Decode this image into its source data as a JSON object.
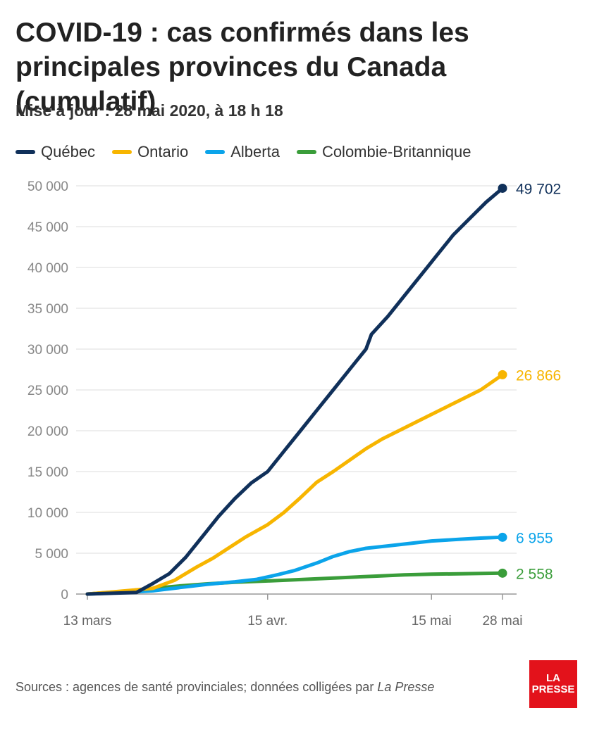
{
  "title": "COVID-19 : cas confirmés dans les principales provinces du Canada (cumulatif)",
  "subtitle": "Mise à jour : 28 mai 2020, à 18 h 18",
  "source": {
    "prefix": "Sources : agences de santé provinciales; données colligées par ",
    "publication": "La Presse"
  },
  "logo": {
    "line1": "LA",
    "line2": "PRESSE"
  },
  "colors": {
    "quebec": "#10305a",
    "ontario": "#f7b500",
    "alberta": "#0ba4ea",
    "bc": "#3a9d3a",
    "grid": "#dddddd",
    "axis": "#999999",
    "tick": "#888888"
  },
  "chart_data": {
    "type": "line",
    "title": "COVID-19 : cas confirmés dans les principales provinces du Canada (cumulatif)",
    "subtitle": "Mise à jour : 28 mai 2020, à 18 h 18",
    "xlabel": "",
    "ylabel": "",
    "x_ticks": [
      {
        "label": "13 mars",
        "date": "2020-03-13"
      },
      {
        "label": "15 avr.",
        "date": "2020-04-15"
      },
      {
        "label": "15 mai",
        "date": "2020-05-15"
      },
      {
        "label": "28 mai",
        "date": "2020-05-28"
      }
    ],
    "xlim": [
      "2020-03-13",
      "2020-05-28"
    ],
    "ylim": [
      0,
      50000
    ],
    "y_ticks": [
      0,
      5000,
      10000,
      15000,
      20000,
      25000,
      30000,
      35000,
      40000,
      45000,
      50000
    ],
    "y_tick_labels": [
      "0",
      "5 000",
      "10 000",
      "15 000",
      "20 000",
      "25 000",
      "30 000",
      "35 000",
      "40 000",
      "45 000",
      "50 000"
    ],
    "grid": "horizontal",
    "legend_position": "top-left",
    "series": [
      {
        "name": "Québec",
        "color": "#10305a",
        "end_label": "49 702",
        "points": [
          [
            "2020-03-13",
            0
          ],
          [
            "2020-03-22",
            200
          ],
          [
            "2020-03-25",
            1300
          ],
          [
            "2020-03-28",
            2500
          ],
          [
            "2020-03-31",
            4500
          ],
          [
            "2020-04-03",
            7000
          ],
          [
            "2020-04-06",
            9500
          ],
          [
            "2020-04-09",
            11700
          ],
          [
            "2020-04-12",
            13600
          ],
          [
            "2020-04-15",
            15000
          ],
          [
            "2020-04-18",
            17500
          ],
          [
            "2020-04-21",
            20000
          ],
          [
            "2020-04-24",
            22500
          ],
          [
            "2020-04-27",
            25000
          ],
          [
            "2020-04-30",
            27500
          ],
          [
            "2020-05-03",
            30000
          ],
          [
            "2020-05-04",
            31800
          ],
          [
            "2020-05-07",
            34000
          ],
          [
            "2020-05-10",
            36500
          ],
          [
            "2020-05-13",
            39000
          ],
          [
            "2020-05-16",
            41500
          ],
          [
            "2020-05-19",
            44000
          ],
          [
            "2020-05-22",
            46000
          ],
          [
            "2020-05-25",
            48000
          ],
          [
            "2020-05-28",
            49702
          ]
        ]
      },
      {
        "name": "Ontario",
        "color": "#f7b500",
        "end_label": "26 866",
        "points": [
          [
            "2020-03-13",
            0
          ],
          [
            "2020-03-20",
            400
          ],
          [
            "2020-03-25",
            700
          ],
          [
            "2020-03-29",
            1700
          ],
          [
            "2020-04-02",
            3300
          ],
          [
            "2020-04-05",
            4400
          ],
          [
            "2020-04-08",
            5700
          ],
          [
            "2020-04-11",
            7000
          ],
          [
            "2020-04-15",
            8500
          ],
          [
            "2020-04-18",
            10000
          ],
          [
            "2020-04-21",
            11800
          ],
          [
            "2020-04-24",
            13700
          ],
          [
            "2020-04-27",
            15000
          ],
          [
            "2020-04-30",
            16400
          ],
          [
            "2020-05-03",
            17800
          ],
          [
            "2020-05-06",
            19000
          ],
          [
            "2020-05-09",
            20000
          ],
          [
            "2020-05-12",
            21000
          ],
          [
            "2020-05-15",
            22000
          ],
          [
            "2020-05-18",
            23000
          ],
          [
            "2020-05-21",
            24000
          ],
          [
            "2020-05-24",
            25000
          ],
          [
            "2020-05-28",
            26866
          ]
        ]
      },
      {
        "name": "Alberta",
        "color": "#0ba4ea",
        "end_label": "6 955",
        "points": [
          [
            "2020-03-13",
            0
          ],
          [
            "2020-03-20",
            200
          ],
          [
            "2020-03-25",
            400
          ],
          [
            "2020-03-30",
            800
          ],
          [
            "2020-04-04",
            1200
          ],
          [
            "2020-04-09",
            1500
          ],
          [
            "2020-04-13",
            1800
          ],
          [
            "2020-04-17",
            2400
          ],
          [
            "2020-04-20",
            2900
          ],
          [
            "2020-04-24",
            3800
          ],
          [
            "2020-04-27",
            4600
          ],
          [
            "2020-04-30",
            5200
          ],
          [
            "2020-05-03",
            5600
          ],
          [
            "2020-05-07",
            5900
          ],
          [
            "2020-05-11",
            6200
          ],
          [
            "2020-05-15",
            6500
          ],
          [
            "2020-05-20",
            6700
          ],
          [
            "2020-05-24",
            6850
          ],
          [
            "2020-05-28",
            6955
          ]
        ]
      },
      {
        "name": "Colombie-Britannique",
        "color": "#3a9d3a",
        "end_label": "2 558",
        "points": [
          [
            "2020-03-13",
            0
          ],
          [
            "2020-03-20",
            350
          ],
          [
            "2020-03-25",
            700
          ],
          [
            "2020-03-30",
            1000
          ],
          [
            "2020-04-04",
            1250
          ],
          [
            "2020-04-09",
            1450
          ],
          [
            "2020-04-15",
            1600
          ],
          [
            "2020-04-20",
            1750
          ],
          [
            "2020-04-25",
            1900
          ],
          [
            "2020-04-30",
            2050
          ],
          [
            "2020-05-05",
            2200
          ],
          [
            "2020-05-10",
            2350
          ],
          [
            "2020-05-15",
            2430
          ],
          [
            "2020-05-20",
            2480
          ],
          [
            "2020-05-28",
            2558
          ]
        ]
      }
    ]
  }
}
